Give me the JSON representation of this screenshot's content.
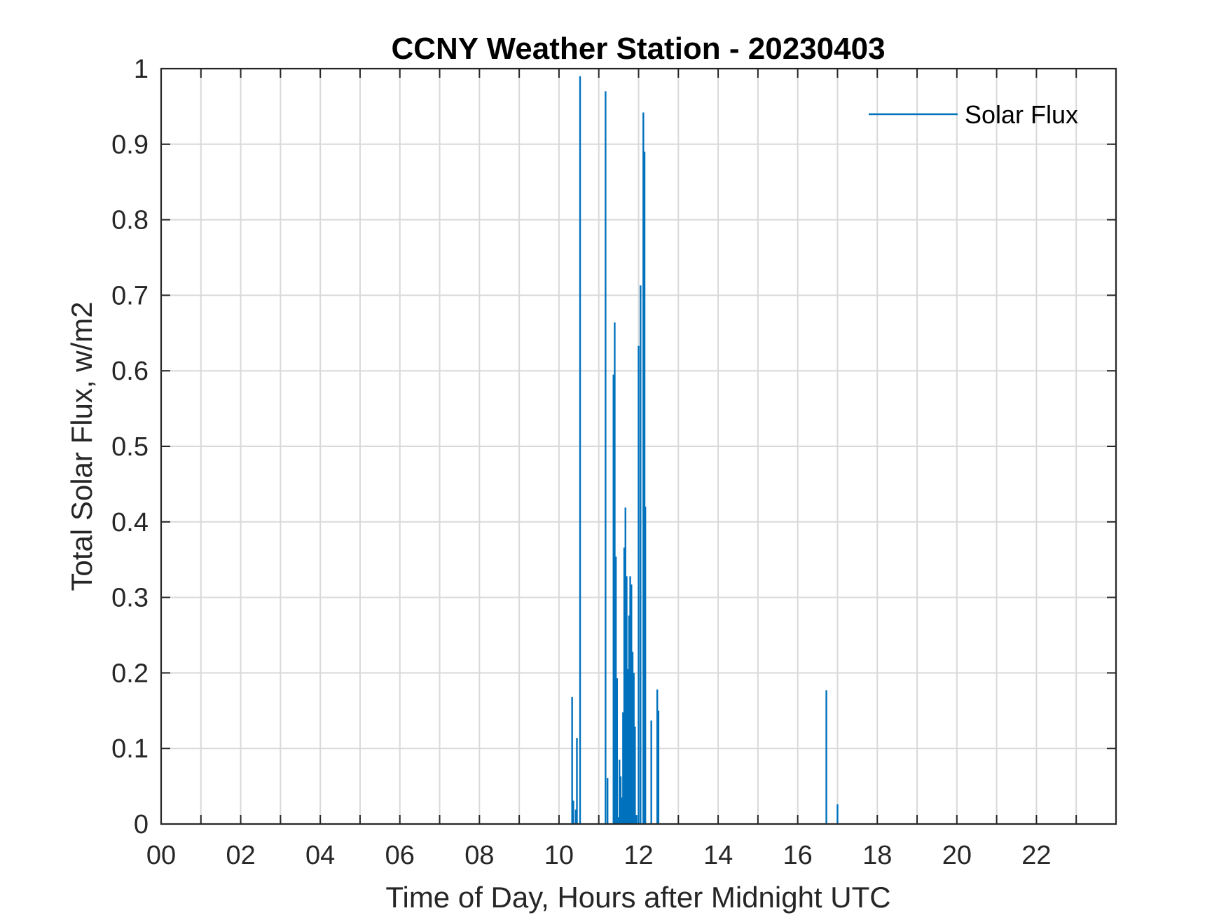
{
  "chart_data": {
    "type": "bar",
    "title": "CCNY Weather Station - 20230403",
    "xlabel": "Time of Day, Hours after Midnight UTC",
    "ylabel": "Total Solar Flux, w/m2",
    "xlim": [
      0,
      24
    ],
    "ylim": [
      0,
      1
    ],
    "x_tick_values": [
      0,
      2,
      4,
      6,
      8,
      10,
      12,
      14,
      16,
      18,
      20,
      22
    ],
    "x_tick_labels": [
      "00",
      "02",
      "04",
      "06",
      "08",
      "10",
      "12",
      "14",
      "16",
      "18",
      "20",
      "22"
    ],
    "y_tick_values": [
      0,
      0.1,
      0.2,
      0.3,
      0.4,
      0.5,
      0.6,
      0.7,
      0.8,
      0.9,
      1
    ],
    "y_tick_labels": [
      "0",
      "0.1",
      "0.2",
      "0.3",
      "0.4",
      "0.5",
      "0.6",
      "0.7",
      "0.8",
      "0.9",
      "1"
    ],
    "grid": true,
    "grid_x_step_hours": 1,
    "legend_position": "top-right",
    "series": [
      {
        "name": "Solar Flux",
        "color": "#0072BD",
        "points": [
          [
            10.33,
            0.168
          ],
          [
            10.36,
            0.031
          ],
          [
            10.42,
            0.019
          ],
          [
            10.45,
            0.114
          ],
          [
            10.53,
            0.99
          ],
          [
            11.17,
            0.97
          ],
          [
            11.22,
            0.061
          ],
          [
            11.37,
            0.595
          ],
          [
            11.4,
            0.664
          ],
          [
            11.43,
            0.354
          ],
          [
            11.46,
            0.193
          ],
          [
            11.49,
            0.009
          ],
          [
            11.52,
            0.085
          ],
          [
            11.55,
            0.063
          ],
          [
            11.58,
            0.035
          ],
          [
            11.61,
            0.148
          ],
          [
            11.64,
            0.366
          ],
          [
            11.67,
            0.419
          ],
          [
            11.7,
            0.328
          ],
          [
            11.73,
            0.205
          ],
          [
            11.76,
            0.276
          ],
          [
            11.79,
            0.328
          ],
          [
            11.82,
            0.317
          ],
          [
            11.85,
            0.228
          ],
          [
            11.88,
            0.2
          ],
          [
            11.91,
            0.129
          ],
          [
            11.95,
            0.012
          ],
          [
            12.0,
            0.633
          ],
          [
            12.05,
            0.713
          ],
          [
            12.12,
            0.942
          ],
          [
            12.15,
            0.89
          ],
          [
            12.17,
            0.42
          ],
          [
            12.32,
            0.137
          ],
          [
            12.47,
            0.178
          ],
          [
            12.5,
            0.15
          ],
          [
            16.72,
            0.177
          ],
          [
            17.0,
            0.026
          ]
        ]
      }
    ]
  }
}
